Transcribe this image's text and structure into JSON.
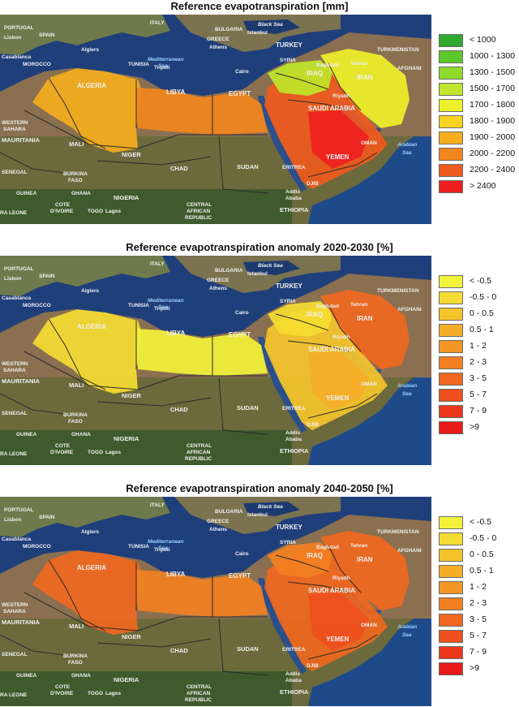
{
  "panels": [
    {
      "title": "Reference evapotranspiration [mm]",
      "legend": [
        {
          "label": "< 1000",
          "color": "#2ea82e"
        },
        {
          "label": "1000 - 1300",
          "color": "#5cc62a"
        },
        {
          "label": "1300 - 1500",
          "color": "#8fd92a"
        },
        {
          "label": "1500 - 1700",
          "color": "#bfe62a"
        },
        {
          "label": "1700 - 1800",
          "color": "#eef02a"
        },
        {
          "label": "1800 - 1900",
          "color": "#f7d21e"
        },
        {
          "label": "1900 - 2000",
          "color": "#f5ad1e"
        },
        {
          "label": "2000 - 2200",
          "color": "#f2861e"
        },
        {
          "label": "2200 - 2400",
          "color": "#ef5a1e"
        },
        {
          "label": "> 2400",
          "color": "#ee1f1f"
        }
      ]
    },
    {
      "title": "Reference evapotranspiration anomaly 2020-2030 [%]",
      "legend": [
        {
          "label": "< -0.5",
          "color": "#f2f23a"
        },
        {
          "label": "-0.5 - 0",
          "color": "#f5dc32"
        },
        {
          "label": "0 - 0.5",
          "color": "#f5c42c"
        },
        {
          "label": "0.5 - 1",
          "color": "#f5ad28"
        },
        {
          "label": "1 - 2",
          "color": "#f39624"
        },
        {
          "label": "2 - 3",
          "color": "#f28022"
        },
        {
          "label": "3 - 5",
          "color": "#f06820"
        },
        {
          "label": "5 - 7",
          "color": "#ee501e"
        },
        {
          "label": "7 - 9",
          "color": "#ec361c"
        },
        {
          "label": ">9",
          "color": "#e91a1a"
        }
      ]
    },
    {
      "title": "Reference evapotranspiration anomaly 2040-2050 [%]",
      "legend": [
        {
          "label": "< -0.5",
          "color": "#f2f23a"
        },
        {
          "label": "-0.5 - 0",
          "color": "#f5dc32"
        },
        {
          "label": "0 - 0.5",
          "color": "#f5c42c"
        },
        {
          "label": "0.5 - 1",
          "color": "#f5ad28"
        },
        {
          "label": "1 - 2",
          "color": "#f39624"
        },
        {
          "label": "2 - 3",
          "color": "#f28022"
        },
        {
          "label": "3 - 5",
          "color": "#f06820"
        },
        {
          "label": "5 - 7",
          "color": "#ee501e"
        },
        {
          "label": "7 - 9",
          "color": "#ec361c"
        },
        {
          "label": ">9",
          "color": "#e91a1a"
        }
      ]
    }
  ],
  "map_labels": {
    "portugal": "PORTUGAL",
    "spain": "SPAIN",
    "lisbon": "Lisbon",
    "algiers": "Algiers",
    "casablanca": "Casablanca",
    "morocco": "MOROCCO",
    "tunisia": "TUNISIA",
    "tripoli": "Tripoli",
    "algeria": "ALGERIA",
    "libya": "LIBYA",
    "egypt": "EGYPT",
    "cairo": "Cairo",
    "saudi": "SAUDI ARABIA",
    "riyadh": "Riyadh",
    "yemen": "YEMEN",
    "oman": "OMAN",
    "iraq": "IRAQ",
    "iran": "IRAN",
    "syria": "SYRIA",
    "turkey": "TURKEY",
    "tehran": "Tehran",
    "baghdad": "Baghdad",
    "afghanistan": "AFGHANI",
    "turkmenistan": "TURKMENISTAN",
    "black_sea": "Black Sea",
    "istanbul": "Istanbul",
    "athens": "Athens",
    "greece": "GREECE",
    "italy": "ITALY",
    "bulgaria": "BULGARIA",
    "mediterranean_1": "Mediterranean",
    "mediterranean_2": "Sea",
    "arabian_1": "Arabian",
    "arabian_2": "Sea",
    "western_sahara": "WESTERN",
    "sahara": "SAHARA",
    "mauritania": "MAURITANIA",
    "mali": "MALI",
    "niger": "NIGER",
    "chad": "CHAD",
    "sudan": "SUDAN",
    "eritrea": "ERITREA",
    "nigeria": "NIGERIA",
    "ethiopia": "ETHIOPIA",
    "senegal": "SENEGAL",
    "guinea": "GUINEA",
    "burkina": "BURKINA",
    "faso": "FASO",
    "ghana": "GHANA",
    "cote": "COTE",
    "divoire": "D'IVOIRE",
    "togo": "TOGO",
    "lagos": "Lagos",
    "central": "CENTRAL",
    "african": "AFRICAN",
    "republic": "REPUBLIC",
    "addis": "Addis",
    "ababa": "Ababa",
    "sierra_leone": "RA LEONE",
    "djibouti": "DJIB"
  }
}
